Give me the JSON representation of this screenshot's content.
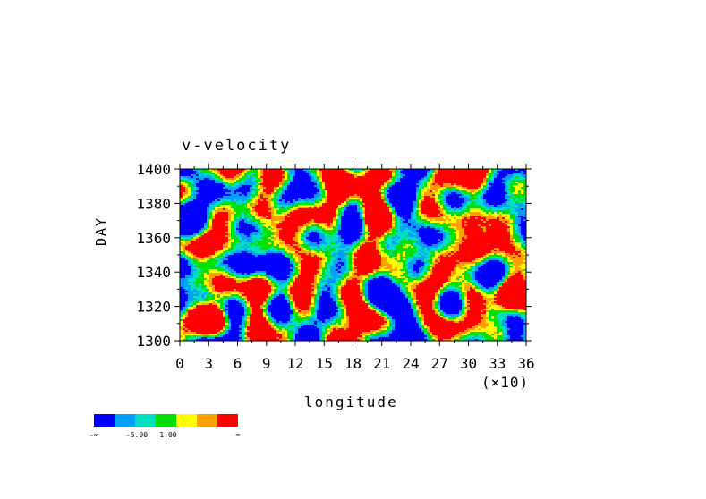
{
  "chart_data": {
    "type": "heatmap",
    "title": "v-velocity",
    "xlabel": "longitude",
    "ylabel": "DAY",
    "x_scale_note": "(×10)",
    "x_ticks": [
      "0",
      "3",
      "6",
      "9",
      "12",
      "15",
      "18",
      "21",
      "24",
      "27",
      "30",
      "33",
      "36"
    ],
    "y_ticks": [
      "1300",
      "1320",
      "1340",
      "1360",
      "1380",
      "1400"
    ],
    "xlim": [
      0,
      36
    ],
    "ylim": [
      1300,
      1400
    ],
    "colorbar": {
      "colors": [
        "#0000ff",
        "#00a0ff",
        "#00e0c0",
        "#00e000",
        "#ffff00",
        "#ffa000",
        "#ff0000"
      ],
      "labels": [
        "-∞",
        "-5.00",
        "1.00",
        "∞"
      ]
    }
  }
}
